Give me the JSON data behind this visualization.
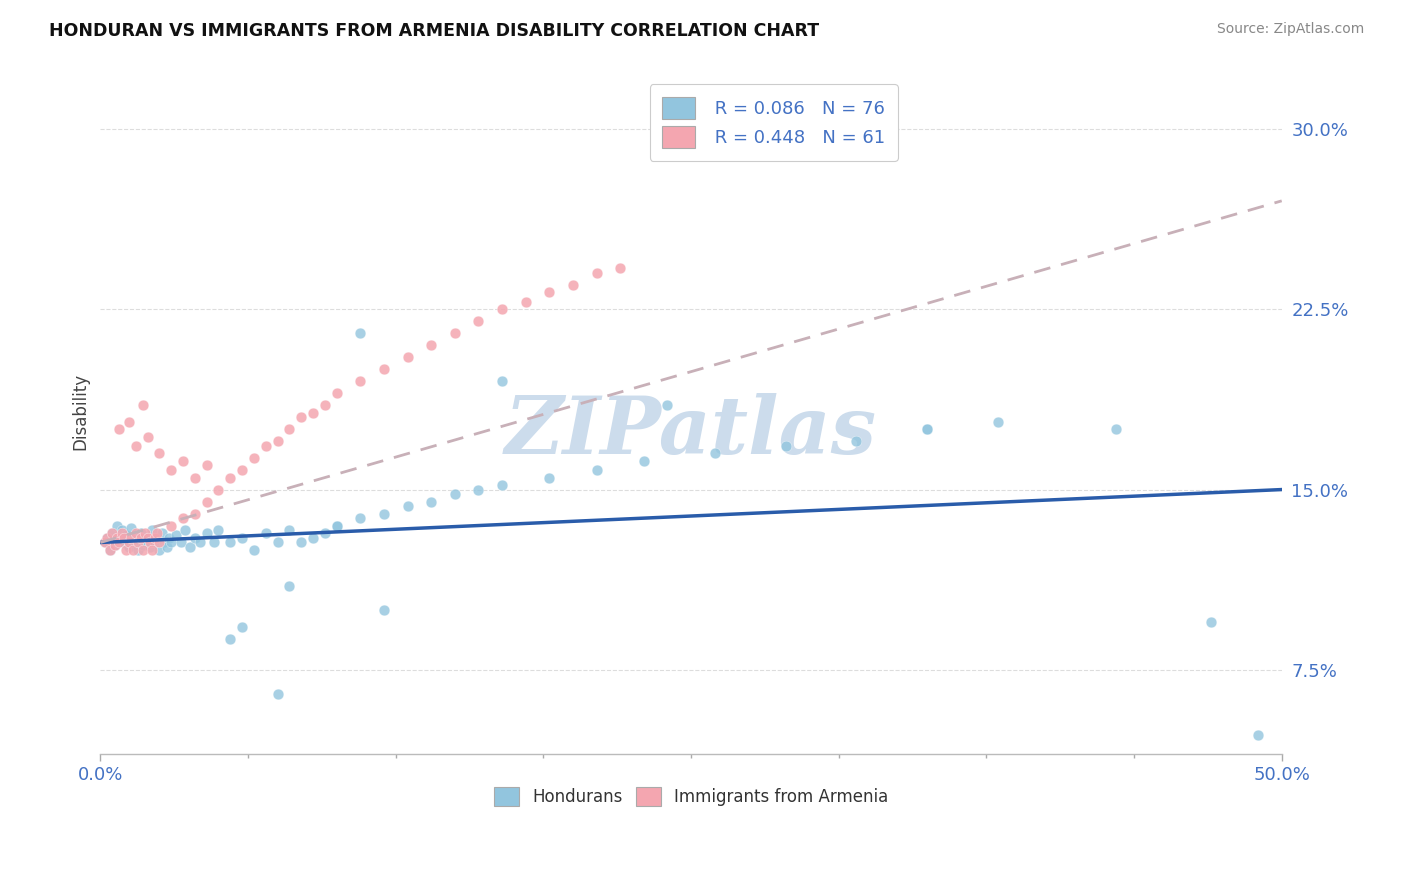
{
  "title": "HONDURAN VS IMMIGRANTS FROM ARMENIA DISABILITY CORRELATION CHART",
  "source": "Source: ZipAtlas.com",
  "ylabel": "Disability",
  "xlim": [
    0.0,
    0.5
  ],
  "ylim": [
    0.04,
    0.325
  ],
  "yticks": [
    0.075,
    0.15,
    0.225,
    0.3
  ],
  "ytick_labels": [
    "7.5%",
    "15.0%",
    "22.5%",
    "30.0%"
  ],
  "legend_r1": "R = 0.086",
  "legend_n1": "N = 76",
  "legend_r2": "R = 0.448",
  "legend_n2": "N = 61",
  "blue_color": "#92c5de",
  "pink_color": "#f4a6b0",
  "trend_blue": "#2a5caa",
  "trend_pink_dash": "#c8b0b8",
  "watermark": "ZIPatlas",
  "watermark_color": "#ccdcec",
  "background_color": "#ffffff",
  "grid_color": "#dddddd",
  "blue_trend_start_y": 0.128,
  "blue_trend_end_y": 0.15,
  "pink_trend_start_y": 0.128,
  "pink_trend_end_y": 0.27,
  "hond_x": [
    0.002,
    0.003,
    0.004,
    0.005,
    0.006,
    0.007,
    0.008,
    0.009,
    0.01,
    0.011,
    0.012,
    0.013,
    0.014,
    0.015,
    0.016,
    0.017,
    0.018,
    0.019,
    0.02,
    0.021,
    0.022,
    0.023,
    0.024,
    0.025,
    0.026,
    0.027,
    0.028,
    0.029,
    0.03,
    0.032,
    0.034,
    0.036,
    0.038,
    0.04,
    0.042,
    0.045,
    0.048,
    0.05,
    0.055,
    0.06,
    0.065,
    0.07,
    0.075,
    0.08,
    0.085,
    0.09,
    0.095,
    0.1,
    0.11,
    0.12,
    0.13,
    0.14,
    0.15,
    0.16,
    0.17,
    0.19,
    0.21,
    0.23,
    0.26,
    0.29,
    0.32,
    0.35,
    0.38,
    0.11,
    0.17,
    0.24,
    0.35,
    0.43,
    0.47,
    0.49,
    0.06,
    0.08,
    0.1,
    0.12,
    0.055,
    0.075
  ],
  "hond_y": [
    0.128,
    0.13,
    0.125,
    0.132,
    0.127,
    0.135,
    0.129,
    0.133,
    0.128,
    0.131,
    0.126,
    0.134,
    0.128,
    0.13,
    0.125,
    0.132,
    0.127,
    0.128,
    0.13,
    0.126,
    0.133,
    0.128,
    0.13,
    0.125,
    0.132,
    0.128,
    0.126,
    0.13,
    0.128,
    0.131,
    0.128,
    0.133,
    0.126,
    0.13,
    0.128,
    0.132,
    0.128,
    0.133,
    0.128,
    0.13,
    0.125,
    0.132,
    0.128,
    0.133,
    0.128,
    0.13,
    0.132,
    0.135,
    0.138,
    0.14,
    0.143,
    0.145,
    0.148,
    0.15,
    0.152,
    0.155,
    0.158,
    0.162,
    0.165,
    0.168,
    0.17,
    0.175,
    0.178,
    0.215,
    0.195,
    0.185,
    0.175,
    0.175,
    0.095,
    0.048,
    0.093,
    0.11,
    0.135,
    0.1,
    0.088,
    0.065
  ],
  "arm_x": [
    0.002,
    0.003,
    0.004,
    0.005,
    0.006,
    0.007,
    0.008,
    0.009,
    0.01,
    0.011,
    0.012,
    0.013,
    0.014,
    0.015,
    0.016,
    0.017,
    0.018,
    0.019,
    0.02,
    0.021,
    0.022,
    0.023,
    0.024,
    0.025,
    0.03,
    0.035,
    0.04,
    0.045,
    0.05,
    0.055,
    0.06,
    0.065,
    0.07,
    0.075,
    0.08,
    0.085,
    0.09,
    0.095,
    0.1,
    0.11,
    0.12,
    0.13,
    0.14,
    0.15,
    0.16,
    0.17,
    0.18,
    0.19,
    0.2,
    0.21,
    0.22,
    0.015,
    0.02,
    0.025,
    0.03,
    0.035,
    0.04,
    0.045,
    0.008,
    0.012,
    0.018
  ],
  "arm_y": [
    0.128,
    0.13,
    0.125,
    0.132,
    0.127,
    0.13,
    0.128,
    0.132,
    0.13,
    0.125,
    0.128,
    0.13,
    0.125,
    0.132,
    0.128,
    0.13,
    0.125,
    0.132,
    0.13,
    0.128,
    0.125,
    0.13,
    0.132,
    0.128,
    0.135,
    0.138,
    0.14,
    0.145,
    0.15,
    0.155,
    0.158,
    0.163,
    0.168,
    0.17,
    0.175,
    0.18,
    0.182,
    0.185,
    0.19,
    0.195,
    0.2,
    0.205,
    0.21,
    0.215,
    0.22,
    0.225,
    0.228,
    0.232,
    0.235,
    0.24,
    0.242,
    0.168,
    0.172,
    0.165,
    0.158,
    0.162,
    0.155,
    0.16,
    0.175,
    0.178,
    0.185
  ]
}
